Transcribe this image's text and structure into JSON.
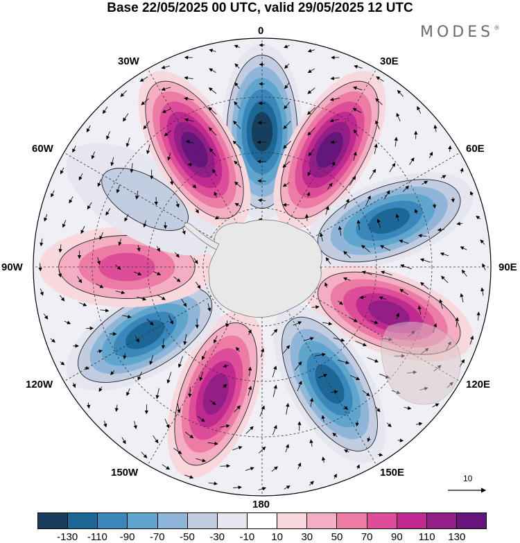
{
  "title": "Base 22/05/2025 00 UTC, valid 29/05/2025 12 UTC",
  "brand": "MODES",
  "brand_mark": "®",
  "longitude_labels": {
    "deg0": "0",
    "e30": "30E",
    "e60": "60E",
    "e90": "90E",
    "e120": "120E",
    "e150": "150E",
    "deg180": "180",
    "w150": "150W",
    "w120": "120W",
    "w90": "90W",
    "w60": "60W",
    "w30": "30W"
  },
  "reference_vector": {
    "value": "10"
  },
  "colorbar": {
    "colors": [
      "#173f5d",
      "#1d6797",
      "#3987bb",
      "#5fa5cc",
      "#8fb6d8",
      "#c2cde2",
      "#e6e6f0",
      "#ffffff",
      "#f8d7dd",
      "#f4aec4",
      "#ec7ba6",
      "#dd4d98",
      "#c0298f",
      "#921e86",
      "#64167a"
    ],
    "tick_labels": [
      "-130",
      "-110",
      "-90",
      "-70",
      "-50",
      "-30",
      "-10",
      "10",
      "30",
      "50",
      "70",
      "90",
      "110",
      "130"
    ]
  },
  "map": {
    "projection": "south polar stereographic",
    "field": "anomaly (shaded) with wind vectors",
    "land_color": "#e8e8e8",
    "anomaly_centers": [
      {
        "lon": 0,
        "sign": "negative",
        "strength": 130
      },
      {
        "lon": 30,
        "sign": "positive",
        "strength": 130
      },
      {
        "lon": 70,
        "sign": "negative",
        "strength": 120
      },
      {
        "lon": 110,
        "sign": "positive",
        "strength": 120
      },
      {
        "lon": 150,
        "sign": "negative",
        "strength": 120
      },
      {
        "lon": -160,
        "sign": "positive",
        "strength": 120
      },
      {
        "lon": -120,
        "sign": "negative",
        "strength": 110
      },
      {
        "lon": -90,
        "sign": "positive",
        "strength": 70
      },
      {
        "lon": -60,
        "sign": "negative",
        "strength": 30
      },
      {
        "lon": -30,
        "sign": "positive",
        "strength": 130
      }
    ]
  }
}
